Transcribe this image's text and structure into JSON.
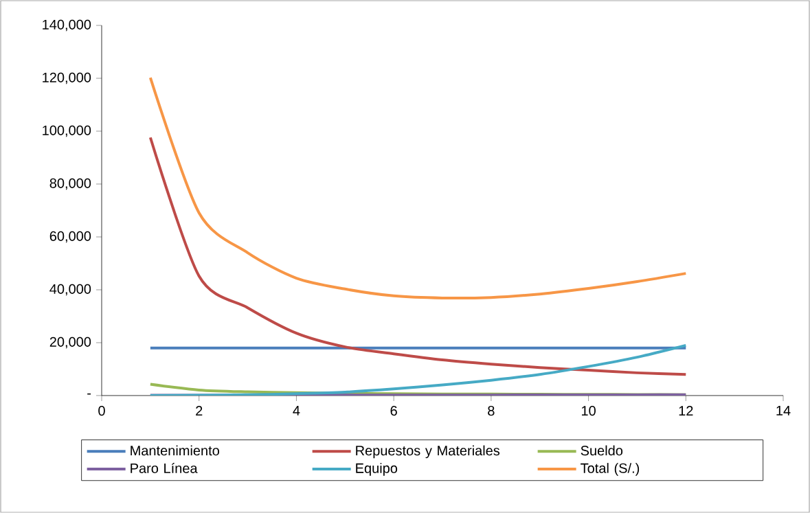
{
  "chart_data": {
    "type": "line",
    "x": [
      1,
      2,
      3,
      4,
      5,
      6,
      7,
      8,
      9,
      10,
      11,
      12
    ],
    "series": [
      {
        "name": "Mantenimiento",
        "color": "#4a7ebb",
        "values": [
          18000,
          18000,
          18000,
          18000,
          18000,
          18000,
          18000,
          18000,
          18000,
          18000,
          18000,
          18000
        ]
      },
      {
        "name": "Repuestos y Materiales",
        "color": "#be4b48",
        "values": [
          97600,
          45200,
          33200,
          23600,
          18400,
          15800,
          13500,
          11900,
          10600,
          9600,
          8600,
          8000
        ]
      },
      {
        "name": "Sueldo",
        "color": "#98b954",
        "values": [
          4300,
          2100,
          1400,
          1100,
          900,
          700,
          600,
          550,
          500,
          450,
          400,
          350
        ]
      },
      {
        "name": "Paro Línea",
        "color": "#7d60a0",
        "values": [
          100,
          120,
          140,
          160,
          180,
          200,
          210,
          220,
          240,
          260,
          280,
          300
        ]
      },
      {
        "name": "Equipo",
        "color": "#46aac5",
        "values": [
          0,
          100,
          300,
          700,
          1300,
          2500,
          4000,
          5800,
          8000,
          11000,
          14500,
          19000
        ]
      },
      {
        "name": "Total (S/.)",
        "color": "#f79646",
        "values": [
          120200,
          69100,
          54000,
          44400,
          40300,
          37700,
          36900,
          37100,
          38400,
          40500,
          43100,
          46200
        ]
      }
    ],
    "xlim": [
      0,
      14
    ],
    "xticks": [
      0,
      2,
      4,
      6,
      8,
      10,
      12,
      14
    ],
    "ylim": [
      0,
      140000
    ],
    "yticks": [
      {
        "value": 0,
        "label": "-"
      },
      {
        "value": 20000,
        "label": "20,000"
      },
      {
        "value": 40000,
        "label": "40,000"
      },
      {
        "value": 60000,
        "label": "60,000"
      },
      {
        "value": 80000,
        "label": "80,000"
      },
      {
        "value": 100000,
        "label": "100,000"
      },
      {
        "value": 120000,
        "label": "120,000"
      },
      {
        "value": 140000,
        "label": "140,000"
      }
    ],
    "grid": false,
    "legend": "bottom",
    "marker": "none",
    "line_style": "solid"
  }
}
